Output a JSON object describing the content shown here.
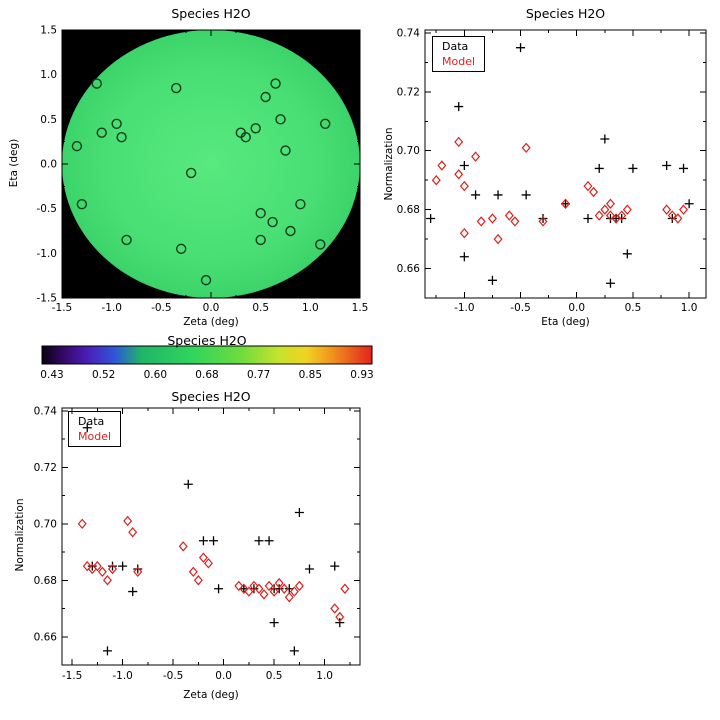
{
  "chart_data": [
    {
      "id": "sky-map",
      "type": "scatter",
      "title": "Species H2O",
      "xlabel": "Zeta (deg)",
      "ylabel": "Eta (deg)",
      "xlim": [
        -1.5,
        1.5
      ],
      "ylim": [
        -1.5,
        1.5
      ],
      "xticks": [
        "-1.5",
        "-1.0",
        "-0.5",
        "0.0",
        "0.5",
        "1.0",
        "1.5"
      ],
      "yticks": [
        "-1.5",
        "-1.0",
        "-0.5",
        "0.0",
        "0.5",
        "1.0",
        "1.5"
      ],
      "background_color": "#000000",
      "marker": "open-circle",
      "marker_color": "#143c1e",
      "disk": {
        "center": [
          0,
          0
        ],
        "radius": 1.5,
        "value_approx": 0.68,
        "gradient": [
          {
            "offset": 0,
            "color": "#58e97f"
          },
          {
            "offset": 0.7,
            "color": "#49df74"
          },
          {
            "offset": 1,
            "color": "#3cd46a"
          }
        ]
      },
      "points": [
        [
          -1.35,
          0.2
        ],
        [
          -1.3,
          -0.45
        ],
        [
          -1.15,
          0.9
        ],
        [
          -1.1,
          0.35
        ],
        [
          -0.95,
          0.45
        ],
        [
          -0.9,
          0.3
        ],
        [
          -0.85,
          -0.85
        ],
        [
          -0.35,
          0.85
        ],
        [
          -0.3,
          -0.95
        ],
        [
          -0.2,
          -0.1
        ],
        [
          -0.05,
          -1.3
        ],
        [
          0.3,
          0.35
        ],
        [
          0.45,
          0.4
        ],
        [
          0.35,
          0.3
        ],
        [
          0.55,
          0.75
        ],
        [
          0.65,
          0.9
        ],
        [
          0.7,
          0.5
        ],
        [
          0.75,
          0.15
        ],
        [
          0.5,
          -0.55
        ],
        [
          0.62,
          -0.65
        ],
        [
          0.5,
          -0.85
        ],
        [
          0.8,
          -0.75
        ],
        [
          0.9,
          -0.45
        ],
        [
          1.1,
          -0.9
        ],
        [
          1.15,
          0.45
        ]
      ]
    },
    {
      "id": "colorbar",
      "type": "heatmap",
      "role": "colorbar",
      "title": "Species H2O",
      "tick_labels": [
        "0.43",
        "0.52",
        "0.60",
        "0.68",
        "0.77",
        "0.85",
        "0.93"
      ],
      "gradient": [
        {
          "offset": 0,
          "color": "#0a0012"
        },
        {
          "offset": 0.07,
          "color": "#360a6e"
        },
        {
          "offset": 0.14,
          "color": "#4a1fb8"
        },
        {
          "offset": 0.22,
          "color": "#2f55d8"
        },
        {
          "offset": 0.3,
          "color": "#21b468"
        },
        {
          "offset": 0.45,
          "color": "#2fd45e"
        },
        {
          "offset": 0.6,
          "color": "#6cdc3e"
        },
        {
          "offset": 0.72,
          "color": "#c8e22c"
        },
        {
          "offset": 0.8,
          "color": "#f0d322"
        },
        {
          "offset": 0.88,
          "color": "#f0921e"
        },
        {
          "offset": 1,
          "color": "#e3231c"
        }
      ]
    },
    {
      "id": "normalization-vs-eta",
      "type": "scatter",
      "title": "Species H2O",
      "xlabel": "Eta (deg)",
      "ylabel": "Normalization",
      "xlim": [
        -1.35,
        1.15
      ],
      "ylim": [
        0.65,
        0.741
      ],
      "xticks": [
        "-1.0",
        "-0.5",
        "0.0",
        "0.5",
        "1.0"
      ],
      "yticks": [
        "0.66",
        "0.68",
        "0.70",
        "0.72",
        "0.74"
      ],
      "legend_position": "top-left",
      "series": [
        {
          "name": "Data",
          "marker": "plus",
          "color": "#000000",
          "points": [
            [
              -1.3,
              0.677
            ],
            [
              -1.05,
              0.715
            ],
            [
              -1.0,
              0.695
            ],
            [
              -1.0,
              0.664
            ],
            [
              -0.9,
              0.685
            ],
            [
              -0.75,
              0.656
            ],
            [
              -0.7,
              0.685
            ],
            [
              -0.5,
              0.735
            ],
            [
              -0.45,
              0.685
            ],
            [
              -0.3,
              0.677
            ],
            [
              -0.1,
              0.682
            ],
            [
              0.1,
              0.677
            ],
            [
              0.2,
              0.694
            ],
            [
              0.25,
              0.704
            ],
            [
              0.3,
              0.655
            ],
            [
              0.3,
              0.677
            ],
            [
              0.35,
              0.677
            ],
            [
              0.4,
              0.677
            ],
            [
              0.45,
              0.665
            ],
            [
              0.5,
              0.694
            ],
            [
              0.8,
              0.695
            ],
            [
              0.85,
              0.677
            ],
            [
              0.95,
              0.694
            ],
            [
              1.0,
              0.682
            ]
          ]
        },
        {
          "name": "Model",
          "marker": "open-diamond",
          "color": "#d8231c",
          "points": [
            [
              -1.25,
              0.69
            ],
            [
              -1.2,
              0.695
            ],
            [
              -1.05,
              0.703
            ],
            [
              -1.05,
              0.692
            ],
            [
              -1.0,
              0.688
            ],
            [
              -1.0,
              0.672
            ],
            [
              -0.9,
              0.698
            ],
            [
              -0.85,
              0.676
            ],
            [
              -0.75,
              0.677
            ],
            [
              -0.7,
              0.67
            ],
            [
              -0.6,
              0.678
            ],
            [
              -0.55,
              0.676
            ],
            [
              -0.45,
              0.701
            ],
            [
              -0.3,
              0.676
            ],
            [
              -0.1,
              0.682
            ],
            [
              0.1,
              0.688
            ],
            [
              0.15,
              0.686
            ],
            [
              0.2,
              0.678
            ],
            [
              0.25,
              0.68
            ],
            [
              0.3,
              0.682
            ],
            [
              0.3,
              0.678
            ],
            [
              0.35,
              0.677
            ],
            [
              0.4,
              0.678
            ],
            [
              0.45,
              0.68
            ],
            [
              0.8,
              0.68
            ],
            [
              0.85,
              0.678
            ],
            [
              0.9,
              0.677
            ],
            [
              0.95,
              0.68
            ]
          ]
        }
      ]
    },
    {
      "id": "normalization-vs-zeta",
      "type": "scatter",
      "title": "Species H2O",
      "xlabel": "Zeta (deg)",
      "ylabel": "Normalization",
      "xlim": [
        -1.6,
        1.35
      ],
      "ylim": [
        0.65,
        0.741
      ],
      "xticks": [
        "-1.5",
        "-1.0",
        "-0.5",
        "0.0",
        "0.5",
        "1.0"
      ],
      "yticks": [
        "0.66",
        "0.68",
        "0.70",
        "0.72",
        "0.74"
      ],
      "legend_position": "top-left",
      "series": [
        {
          "name": "Data",
          "marker": "plus",
          "color": "#000000",
          "points": [
            [
              -1.35,
              0.734
            ],
            [
              -1.3,
              0.685
            ],
            [
              -1.15,
              0.655
            ],
            [
              -1.1,
              0.685
            ],
            [
              -1.0,
              0.685
            ],
            [
              -0.9,
              0.676
            ],
            [
              -0.85,
              0.684
            ],
            [
              -0.35,
              0.714
            ],
            [
              -0.2,
              0.694
            ],
            [
              -0.1,
              0.694
            ],
            [
              -0.05,
              0.677
            ],
            [
              0.2,
              0.677
            ],
            [
              0.3,
              0.677
            ],
            [
              0.35,
              0.694
            ],
            [
              0.45,
              0.694
            ],
            [
              0.5,
              0.677
            ],
            [
              0.5,
              0.665
            ],
            [
              0.55,
              0.677
            ],
            [
              0.65,
              0.677
            ],
            [
              0.7,
              0.655
            ],
            [
              0.75,
              0.704
            ],
            [
              0.85,
              0.684
            ],
            [
              1.1,
              0.685
            ],
            [
              1.15,
              0.665
            ]
          ]
        },
        {
          "name": "Model",
          "marker": "open-diamond",
          "color": "#d8231c",
          "points": [
            [
              -1.4,
              0.7
            ],
            [
              -1.35,
              0.685
            ],
            [
              -1.3,
              0.684
            ],
            [
              -1.25,
              0.685
            ],
            [
              -1.2,
              0.683
            ],
            [
              -1.15,
              0.68
            ],
            [
              -1.1,
              0.684
            ],
            [
              -0.95,
              0.701
            ],
            [
              -0.9,
              0.697
            ],
            [
              -0.85,
              0.683
            ],
            [
              -0.4,
              0.692
            ],
            [
              -0.3,
              0.683
            ],
            [
              -0.25,
              0.68
            ],
            [
              -0.2,
              0.688
            ],
            [
              -0.15,
              0.686
            ],
            [
              0.15,
              0.678
            ],
            [
              0.2,
              0.677
            ],
            [
              0.25,
              0.676
            ],
            [
              0.3,
              0.678
            ],
            [
              0.35,
              0.677
            ],
            [
              0.4,
              0.675
            ],
            [
              0.45,
              0.678
            ],
            [
              0.5,
              0.676
            ],
            [
              0.55,
              0.679
            ],
            [
              0.6,
              0.677
            ],
            [
              0.65,
              0.674
            ],
            [
              0.7,
              0.676
            ],
            [
              0.75,
              0.678
            ],
            [
              1.1,
              0.67
            ],
            [
              1.15,
              0.667
            ],
            [
              1.2,
              0.677
            ]
          ]
        }
      ]
    }
  ]
}
